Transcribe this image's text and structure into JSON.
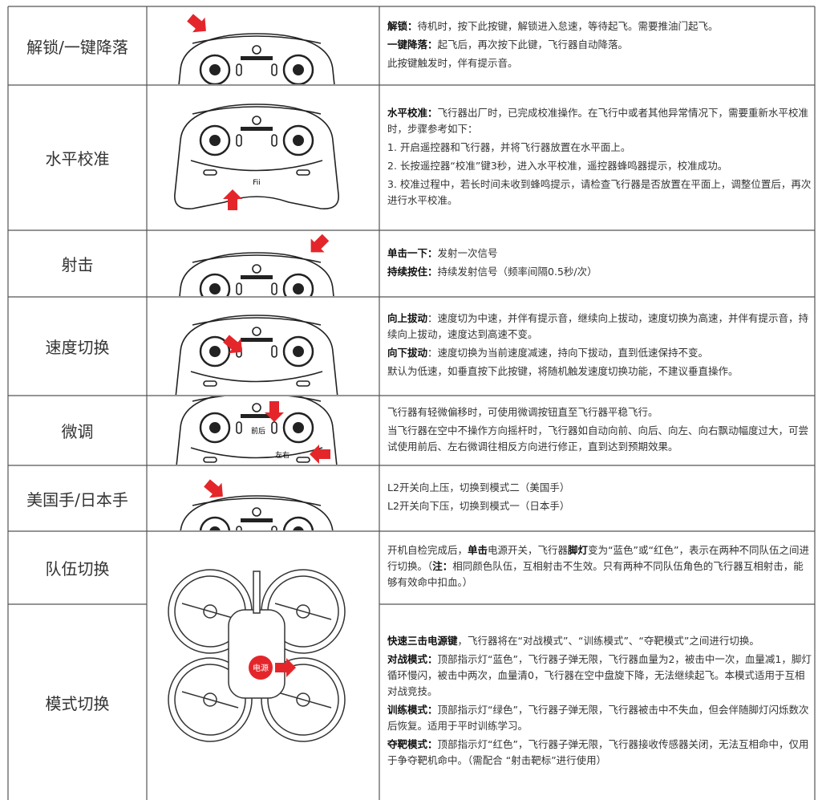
{
  "rows": [
    {
      "label": "解锁/一键降落",
      "paragraphs": [
        [
          {
            "b": "解锁："
          },
          "待机时，按下此按键，解锁进入怠速，等待起飞。需要推油门起飞。"
        ],
        [
          {
            "b": "一键降落："
          },
          "起飞后，再次按下此键，飞行器自动降落。"
        ],
        [
          "此按键触发时，伴有提示音。"
        ]
      ]
    },
    {
      "label": "水平校准",
      "image_text": "Fii",
      "paragraphs": [
        [
          {
            "b": "水平校准："
          },
          "飞行器出厂时，已完成校准操作。在飞行中或者其他异常情况下，需要重新水平校准时，步骤参考如下："
        ],
        [
          "1. 开启遥控器和飞行器，并将飞行器放置在水平面上。"
        ],
        [
          "2. 长按遥控器“校准”键3秒，进入水平校准，遥控器蜂鸣器提示，校准成功。"
        ],
        [
          "3. 校准过程中，若长时间未收到蜂鸣提示，请检查飞行器是否放置在平面上，调整位置后，再次进行水平校准。"
        ]
      ]
    },
    {
      "label": "射击",
      "paragraphs": [
        [
          {
            "b": "单击一下："
          },
          "发射一次信号"
        ],
        [
          {
            "b": "持续按住："
          },
          "持续发射信号（频率间隔0.5秒/次）"
        ]
      ]
    },
    {
      "label": "速度切换",
      "paragraphs": [
        [
          {
            "b": "向上拔动"
          },
          "：速度切为中速，并伴有提示音，继续向上拔动，速度切换为高速，并伴有提示音，持续向上拔动，速度达到高速不变。"
        ],
        [
          {
            "b": "向下拔动"
          },
          "：速度切换为当前速度减速，持向下拔动，直到低速保持不变。"
        ],
        [
          "默认为低速，如垂直按下此按键，将随机触发速度切换功能，不建议垂直操作。"
        ]
      ]
    },
    {
      "label": "微调",
      "image_labels": [
        "前后",
        "左右"
      ],
      "paragraphs": [
        [
          "飞行器有轻微偏移时，可使用微调按钮直至飞行器平稳飞行。"
        ],
        [
          "当飞行器在空中不操作方向摇杆时，飞行器如自动向前、向后、向左、向右飘动幅度过大，可尝试使用前后、左右微调往相反方向进行修正，直到达到预期效果。"
        ]
      ]
    },
    {
      "label": "美国手/日本手",
      "paragraphs": [
        [
          "L2开关向上压，切换到模式二（美国手）"
        ],
        [
          "L2开关向下压，切换到模式一（日本手）"
        ]
      ]
    },
    {
      "label": "队伍切换",
      "paragraphs": [
        [
          "开机自检完成后，",
          {
            "b": "单击"
          },
          "电源开关，飞行器",
          {
            "b": "脚灯"
          },
          "变为“蓝色”或“红色”，表示在两种不同队伍之间进行切换。（",
          {
            "b": "注："
          },
          "相同颜色队伍，互相射击不生效。只有两种不同队伍角色的飞行器互相射击，能够有效命中扣血。）"
        ]
      ]
    },
    {
      "label": "模式切换",
      "image_text": "电源",
      "paragraphs": [
        [
          {
            "b": "快速三击电源键"
          },
          "，飞行器将在“对战模式”、“训练模式”、“夺靶模式”之间进行切换。"
        ],
        [
          {
            "b": "对战模式："
          },
          "顶部指示灯“蓝色”，飞行器子弹无限，飞行器血量为2，被击中一次，血量减1，脚灯循环慢闪，被击中两次，血量清0，飞行器在空中盘旋下降，无法继续起飞。本模式适用于互相对战竞技。"
        ],
        [
          {
            "b": "训练模式："
          },
          "顶部指示灯“绿色”，飞行器子弹无限，飞行器被击中不失血，但会伴随脚灯闪烁数次后恢复。适用于平时训练学习。"
        ],
        [
          {
            "b": "夺靶模式："
          },
          "顶部指示灯“红色”，飞行器子弹无限，飞行器接收传感器关闭，无法互相命中，仅用于争夺靶机命中。（需配合 “射击靶标”进行使用）"
        ]
      ]
    }
  ]
}
